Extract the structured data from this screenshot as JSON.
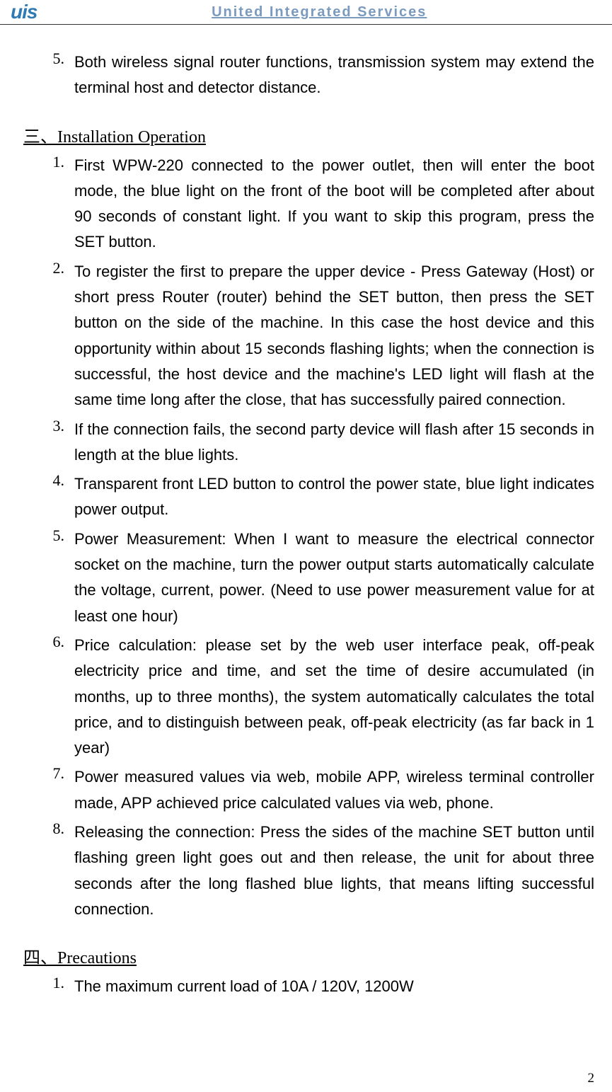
{
  "header": {
    "logo_text": "uis",
    "title": "United Integrated Services"
  },
  "first_list": {
    "items": [
      {
        "number": "5.",
        "text": "Both wireless signal router functions, transmission system may extend the terminal host and detector distance."
      }
    ]
  },
  "section_3": {
    "title": "三、Installation Operation",
    "items": [
      {
        "number": "1.",
        "text": "First WPW-220 connected to the power outlet, then will enter the boot mode, the blue light on the front of the boot will be completed after about 90 seconds of constant light. If you want to skip this program, press the SET button."
      },
      {
        "number": "2.",
        "text": "To register the first to prepare the upper device - Press Gateway (Host) or short press Router (router) behind the SET button, then press the SET button on the side of the machine. In this case the host device and this opportunity within about 15 seconds flashing lights; when the connection is successful, the host device and the machine's LED light will flash at the same time long after the close, that has successfully paired connection."
      },
      {
        "number": "3.",
        "text": "If the connection fails, the second party device will flash after 15 seconds in length at the blue lights."
      },
      {
        "number": "4.",
        "text": "Transparent front LED button to control the power state, blue light indicates power output."
      },
      {
        "number": "5.",
        "text": "Power Measurement: When I want to measure the electrical connector socket on the machine, turn the power output starts automatically calculate the voltage, current, power. (Need to use power measurement value for at least one hour)"
      },
      {
        "number": "6.",
        "text": "Price calculation: please set by the web user interface peak, off-peak electricity price and time, and set the time of desire accumulated (in months, up to three months), the system automatically calculates the total price, and to distinguish between peak, off-peak electricity (as far back in 1 year)"
      },
      {
        "number": "7.",
        "text": "Power measured values via web, mobile APP, wireless terminal controller made, APP achieved price calculated values via web, phone."
      },
      {
        "number": "8.",
        "text": "Releasing the connection: Press the sides of the machine SET button until flashing green light goes out and then release, the unit for about three seconds after the long flashed blue lights, that means lifting successful connection."
      }
    ]
  },
  "section_4": {
    "title": "四、Precautions",
    "items": [
      {
        "number": "1.",
        "text": "The maximum current load of 10A / 120V, 1200W"
      }
    ]
  },
  "page_number": "2",
  "colors": {
    "logo_color": "#2e7ab5",
    "header_title_color": "#7a9abf",
    "text_color": "#000000",
    "background": "#ffffff"
  },
  "typography": {
    "body_font": "Arial",
    "number_font": "Times New Roman",
    "title_font": "Times New Roman",
    "body_size": 22,
    "number_size": 22,
    "title_size": 24,
    "header_title_size": 20,
    "logo_size": 28
  }
}
